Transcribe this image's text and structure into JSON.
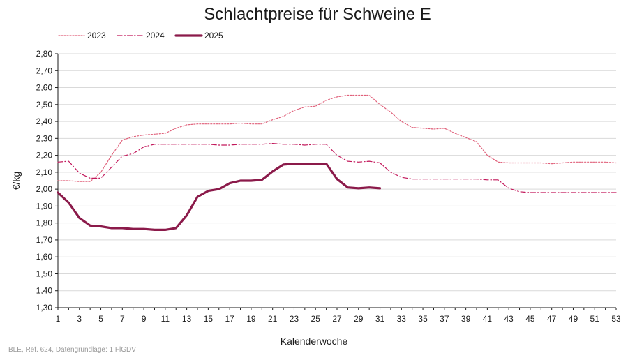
{
  "chart_data": {
    "type": "line",
    "title": "Schlachtpreise für Schweine E",
    "xlabel": "Kalenderwoche",
    "ylabel": "€/kg",
    "xlim": [
      1,
      53
    ],
    "ylim": [
      1.3,
      2.8
    ],
    "ytick_step": 0.1,
    "xticks": [
      "1",
      "3",
      "5",
      "7",
      "9",
      "11",
      "13",
      "15",
      "17",
      "19",
      "21",
      "23",
      "25",
      "27",
      "29",
      "31",
      "33",
      "35",
      "37",
      "39",
      "41",
      "43",
      "45",
      "47",
      "49",
      "51",
      "53"
    ],
    "yticks": [
      "1,30",
      "1,40",
      "1,50",
      "1,60",
      "1,70",
      "1,80",
      "1,90",
      "2,00",
      "2,10",
      "2,20",
      "2,30",
      "2,40",
      "2,50",
      "2,60",
      "2,70",
      "2,80"
    ],
    "grid": "horizontal",
    "legend_position": "top-left",
    "source": "BLE, Ref. 624, Datengrundlage: 1.FlGDV",
    "series": [
      {
        "name": "2023",
        "style": "dotted",
        "color": "#e0607a",
        "x": [
          1,
          2,
          3,
          4,
          5,
          6,
          7,
          8,
          9,
          10,
          11,
          12,
          13,
          14,
          15,
          16,
          17,
          18,
          19,
          20,
          21,
          22,
          23,
          24,
          25,
          26,
          27,
          28,
          29,
          30,
          31,
          32,
          33,
          34,
          35,
          36,
          37,
          38,
          39,
          40,
          41,
          42,
          43,
          44,
          45,
          46,
          47,
          48,
          49,
          50,
          51,
          52,
          53
        ],
        "values": [
          2.05,
          2.05,
          2.045,
          2.045,
          2.1,
          2.2,
          2.29,
          2.31,
          2.32,
          2.325,
          2.33,
          2.36,
          2.38,
          2.385,
          2.385,
          2.385,
          2.385,
          2.39,
          2.385,
          2.385,
          2.41,
          2.43,
          2.465,
          2.485,
          2.49,
          2.525,
          2.545,
          2.555,
          2.555,
          2.555,
          2.5,
          2.455,
          2.4,
          2.365,
          2.36,
          2.355,
          2.36,
          2.33,
          2.305,
          2.28,
          2.2,
          2.16,
          2.155,
          2.155,
          2.155,
          2.155,
          2.15,
          2.155,
          2.16,
          2.16,
          2.16,
          2.16,
          2.155
        ]
      },
      {
        "name": "2024",
        "style": "dashdot",
        "color": "#c2185b",
        "x": [
          1,
          2,
          3,
          4,
          5,
          6,
          7,
          8,
          9,
          10,
          11,
          12,
          13,
          14,
          15,
          16,
          17,
          18,
          19,
          20,
          21,
          22,
          23,
          24,
          25,
          26,
          27,
          28,
          29,
          30,
          31,
          32,
          33,
          34,
          35,
          36,
          37,
          38,
          39,
          40,
          41,
          42,
          43,
          44,
          45,
          46,
          47,
          48,
          49,
          50,
          51,
          52,
          53
        ],
        "values": [
          2.16,
          2.165,
          2.095,
          2.065,
          2.065,
          2.13,
          2.195,
          2.21,
          2.25,
          2.265,
          2.265,
          2.265,
          2.265,
          2.265,
          2.265,
          2.26,
          2.26,
          2.265,
          2.265,
          2.265,
          2.27,
          2.265,
          2.265,
          2.26,
          2.265,
          2.265,
          2.2,
          2.165,
          2.16,
          2.165,
          2.155,
          2.1,
          2.07,
          2.06,
          2.06,
          2.06,
          2.06,
          2.06,
          2.06,
          2.06,
          2.055,
          2.055,
          2.005,
          1.985,
          1.98,
          1.98,
          1.98,
          1.98,
          1.98,
          1.98,
          1.98,
          1.98,
          1.98
        ]
      },
      {
        "name": "2025",
        "style": "solid",
        "color": "#8b1a4a",
        "x": [
          1,
          2,
          3,
          4,
          5,
          6,
          7,
          8,
          9,
          10,
          11,
          12,
          13,
          14,
          15,
          16,
          17,
          18,
          19,
          20,
          21,
          22,
          23,
          24,
          25,
          26,
          27,
          28,
          29,
          30,
          31
        ],
        "values": [
          1.98,
          1.92,
          1.83,
          1.785,
          1.78,
          1.77,
          1.77,
          1.765,
          1.765,
          1.76,
          1.76,
          1.77,
          1.845,
          1.955,
          1.99,
          2.0,
          2.035,
          2.05,
          2.05,
          2.055,
          2.105,
          2.145,
          2.15,
          2.15,
          2.15,
          2.15,
          2.06,
          2.01,
          2.005,
          2.01,
          2.005
        ]
      }
    ]
  }
}
